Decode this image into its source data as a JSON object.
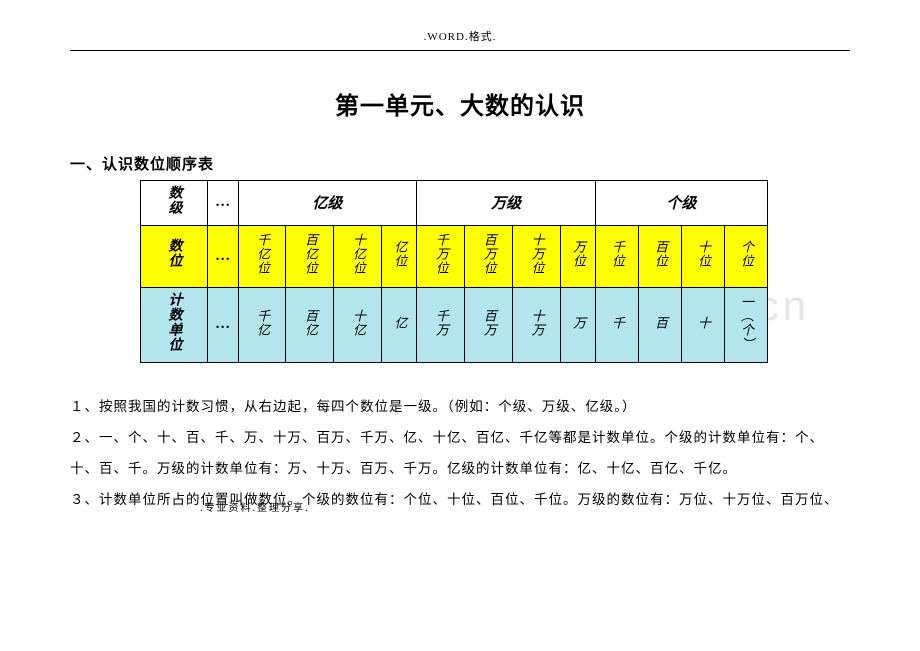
{
  "header": ".WORD.格式.",
  "title": "第一单元、大数的认识",
  "section_heading": "一、认识数位顺序表",
  "watermark": "m.cn",
  "table": {
    "row1": {
      "label": "数级",
      "dots": "…",
      "groups": [
        "亿级",
        "万级",
        "个级"
      ]
    },
    "row2": {
      "label": "数位",
      "dots": "…",
      "cells": [
        "千亿位",
        "百亿位",
        "十亿位",
        "亿位",
        "千万位",
        "百万位",
        "十万位",
        "万位",
        "千位",
        "百位",
        "十位",
        "个位"
      ],
      "bg": "#ffff00"
    },
    "row3": {
      "label": "计数单位",
      "dots": "…",
      "cells": [
        "千亿",
        "百亿",
        "十亿",
        "亿",
        "千万",
        "百万",
        "十万",
        "万",
        "千",
        "百",
        "十",
        "一︵个︶"
      ],
      "bg": "#b3e5ec"
    }
  },
  "paragraphs": {
    "p1": "１、按照我国的计数习惯，从右边起，每四个数位是一级。（例如：个级、万级、亿级。）",
    "p2": "２、一、个、十、百、千、万、十万、百万、千万、亿、十亿、百亿、千亿等都是计数单位。个级的计数单位有：个、十、百、千。万级的计数单位有：万、十万、百万、千万。亿级的计数单位有：亿、十亿、百亿、千亿。",
    "p3": "３、计数单位所占的位置叫做数位。个级的数位有：个位、十位、百位、千位。万级的数位有：万位、十万位、百万位、"
  },
  "footer": ".专业资料.整理分享."
}
